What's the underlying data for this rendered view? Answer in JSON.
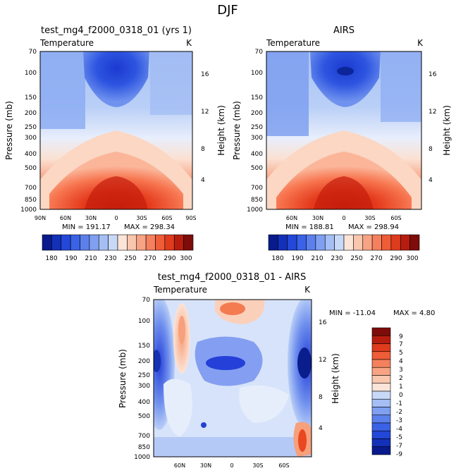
{
  "page_title": "DJF",
  "colors": {
    "deep_blue": "#0a1d8c",
    "blue": "#2d54e0",
    "light_blue": "#b9cff7",
    "neutral": "#fbe4d8",
    "orange": "#f46a3a",
    "deep_red": "#8a0d0d"
  },
  "chart_data": [
    {
      "type": "heatmap",
      "title": "test_mg4_f2000_0318_01 (yrs 1)",
      "variable": "Temperature",
      "units": "K",
      "ylabel": "Pressure (mb)",
      "y2label": "Height (km)",
      "x_ticks": [
        "90N",
        "60N",
        "30N",
        "0",
        "30S",
        "60S",
        "90S"
      ],
      "y_ticks": [
        "70",
        "100",
        "150",
        "200",
        "250",
        "300",
        "400",
        "500",
        "700",
        "850",
        "1000"
      ],
      "y2_ticks": [
        "16",
        "12",
        "8",
        "4"
      ],
      "min_label": "MIN = 191.17",
      "max_label": "MAX = 298.34",
      "colorbar_ticks": [
        "180",
        "190",
        "210",
        "230",
        "250",
        "270",
        "290",
        "300"
      ]
    },
    {
      "type": "heatmap",
      "title": "AIRS",
      "variable": "Temperature",
      "units": "K",
      "ylabel": "Pressure (mb)",
      "y2label": "Height (km)",
      "x_ticks": [
        "60N",
        "30N",
        "0",
        "30S",
        "60S"
      ],
      "y_ticks": [
        "70",
        "100",
        "150",
        "200",
        "250",
        "300",
        "400",
        "500",
        "700",
        "850",
        "1000"
      ],
      "y2_ticks": [
        "16",
        "12",
        "8",
        "4"
      ],
      "min_label": "MIN = 188.81",
      "max_label": "MAX = 298.94",
      "colorbar_ticks": [
        "180",
        "190",
        "210",
        "230",
        "250",
        "270",
        "290",
        "300"
      ]
    },
    {
      "type": "heatmap",
      "title": "test_mg4_f2000_0318_01 - AIRS",
      "variable": "Temperature",
      "units": "K",
      "ylabel": "Pressure (mb)",
      "y2label": "Height (km)",
      "x_ticks": [
        "60N",
        "30N",
        "0",
        "30S",
        "60S"
      ],
      "y_ticks": [
        "70",
        "100",
        "150",
        "200",
        "250",
        "300",
        "400",
        "500",
        "700",
        "850",
        "1000"
      ],
      "y2_ticks": [
        "16",
        "12",
        "8",
        "4"
      ],
      "min_label": "MIN = -11.04",
      "max_label": "MAX =    4.80",
      "colorbar_ticks": [
        "9",
        "7",
        "5",
        "4",
        "3",
        "2",
        "1",
        "0",
        "-1",
        "-2",
        "-3",
        "-4",
        "-5",
        "-7",
        "-9"
      ]
    }
  ]
}
